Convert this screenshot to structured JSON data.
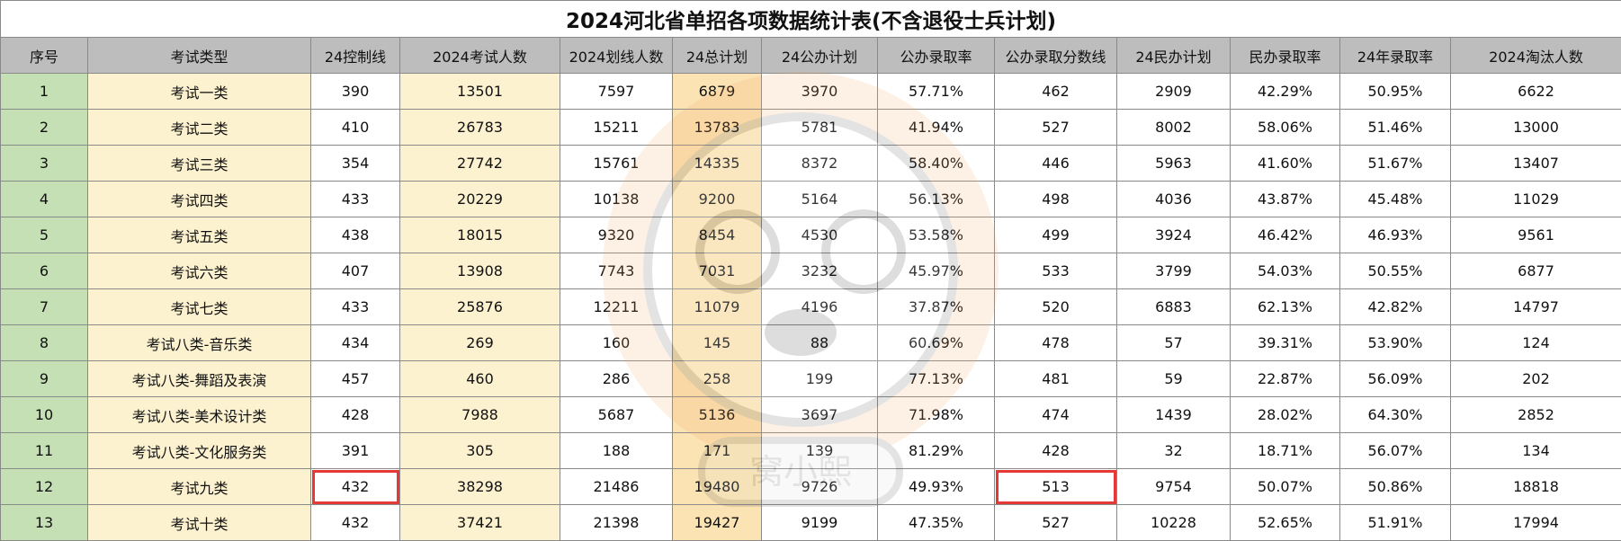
{
  "title": "2024河北省单招各项数据统计表(不含退役士兵计划)",
  "headers": [
    "序号",
    "考试类型",
    "24控制线",
    "2024考试人数",
    "2024划线人数",
    "24总计划",
    "24公办计划",
    "公办录取率",
    "公办录取分数线",
    "24民办计划",
    "民办录取率",
    "24年录取率",
    "2024淘汰人数"
  ],
  "rows": [
    [
      "1",
      "考试一类",
      "390",
      "13501",
      "7597",
      "6879",
      "3970",
      "57.71%",
      "462",
      "2909",
      "42.29%",
      "50.95%",
      "6622"
    ],
    [
      "2",
      "考试二类",
      "410",
      "26783",
      "15211",
      "13783",
      "5781",
      "41.94%",
      "527",
      "8002",
      "58.06%",
      "51.46%",
      "13000"
    ],
    [
      "3",
      "考试三类",
      "354",
      "27742",
      "15761",
      "14335",
      "8372",
      "58.40%",
      "446",
      "5963",
      "41.60%",
      "51.67%",
      "13407"
    ],
    [
      "4",
      "考试四类",
      "433",
      "20229",
      "10138",
      "9200",
      "5164",
      "56.13%",
      "498",
      "4036",
      "43.87%",
      "45.48%",
      "11029"
    ],
    [
      "5",
      "考试五类",
      "438",
      "18015",
      "9320",
      "8454",
      "4530",
      "53.58%",
      "499",
      "3924",
      "46.42%",
      "46.93%",
      "9561"
    ],
    [
      "6",
      "考试六类",
      "407",
      "13908",
      "7743",
      "7031",
      "3232",
      "45.97%",
      "533",
      "3799",
      "54.03%",
      "50.55%",
      "6877"
    ],
    [
      "7",
      "考试七类",
      "433",
      "25876",
      "12211",
      "11079",
      "4196",
      "37.87%",
      "520",
      "6883",
      "62.13%",
      "42.82%",
      "14797"
    ],
    [
      "8",
      "考试八类-音乐类",
      "434",
      "269",
      "160",
      "145",
      "88",
      "60.69%",
      "478",
      "57",
      "39.31%",
      "53.90%",
      "124"
    ],
    [
      "9",
      "考试八类-舞蹈及表演",
      "457",
      "460",
      "286",
      "258",
      "199",
      "77.13%",
      "481",
      "59",
      "22.87%",
      "56.09%",
      "202"
    ],
    [
      "10",
      "考试八类-美术设计类",
      "428",
      "7988",
      "5687",
      "5136",
      "3697",
      "71.98%",
      "474",
      "1439",
      "28.02%",
      "64.30%",
      "2852"
    ],
    [
      "11",
      "考试八类-文化服务类",
      "391",
      "305",
      "188",
      "171",
      "139",
      "81.29%",
      "428",
      "32",
      "18.71%",
      "56.07%",
      "134"
    ],
    [
      "12",
      "考试九类",
      "432",
      "38298",
      "21486",
      "19480",
      "9726",
      "49.93%",
      "513",
      "9754",
      "50.07%",
      "50.86%",
      "18818"
    ],
    [
      "13",
      "考试十类",
      "432",
      "37421",
      "21398",
      "19427",
      "9199",
      "47.35%",
      "527",
      "10228",
      "52.65%",
      "51.91%",
      "17994"
    ]
  ],
  "watermark_text": "窝小熙",
  "colors": {
    "header_bg": "#bdbdbd",
    "index_col_bg": "#c5e0b4",
    "type_col_bg": "#fdf2d0",
    "total_plan_col_bg": "#fbe3b3",
    "highlight_border": "#e53935"
  }
}
